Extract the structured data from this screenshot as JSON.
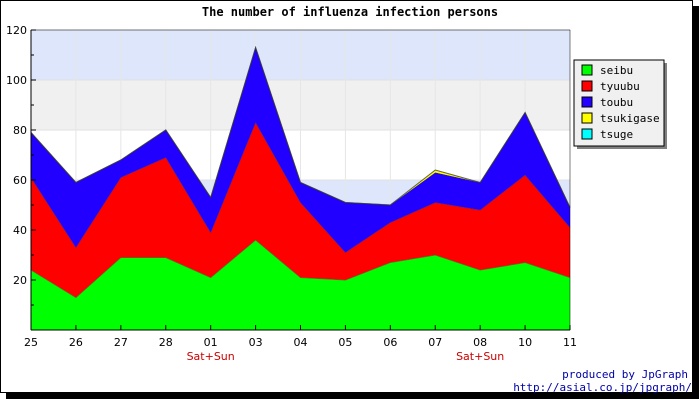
{
  "chart_data": {
    "type": "area",
    "stacked": true,
    "title": "The number of influenza infection persons",
    "xlabel": "",
    "ylabel": "",
    "categories": [
      "25",
      "26",
      "27",
      "28",
      "01",
      "03",
      "04",
      "05",
      "06",
      "07",
      "08",
      "10",
      "11"
    ],
    "sublabels": [
      "",
      "",
      "",
      "",
      "Sat+Sun",
      "",
      "",
      "",
      "",
      "",
      "Sat+Sun",
      "",
      ""
    ],
    "ylim": [
      0,
      120
    ],
    "yticks": [
      20,
      40,
      60,
      80,
      100,
      120
    ],
    "grid": true,
    "band_colors": [
      "#ffffff",
      "#f0f0f0",
      "#dde6fb"
    ],
    "legend_position": "right",
    "series": [
      {
        "name": "seibu",
        "color": "#00ff00",
        "values": [
          24,
          13,
          29,
          29,
          21,
          36,
          21,
          20,
          27,
          30,
          24,
          27,
          21
        ]
      },
      {
        "name": "tyuubu",
        "color": "#ff0000",
        "values": [
          37,
          20,
          32,
          40,
          18,
          47,
          30,
          11,
          16,
          21,
          24,
          35,
          20
        ]
      },
      {
        "name": "toubu",
        "color": "#2200ff",
        "values": [
          18,
          26,
          7,
          11,
          14,
          30,
          8,
          20,
          7,
          12,
          11,
          25,
          8
        ]
      },
      {
        "name": "tsukigase",
        "color": "#ffff00",
        "values": [
          0,
          0,
          0,
          0,
          0,
          0,
          0,
          0,
          0,
          1,
          0,
          0,
          0
        ]
      },
      {
        "name": "tsuge",
        "color": "#00ffff",
        "values": [
          0,
          0,
          0,
          0,
          0,
          0,
          0,
          0,
          0,
          0,
          0,
          0,
          0
        ]
      }
    ]
  },
  "credit": {
    "line1": "produced by JpGraph",
    "line2": "http://asial.co.jp/jpgraph/"
  }
}
